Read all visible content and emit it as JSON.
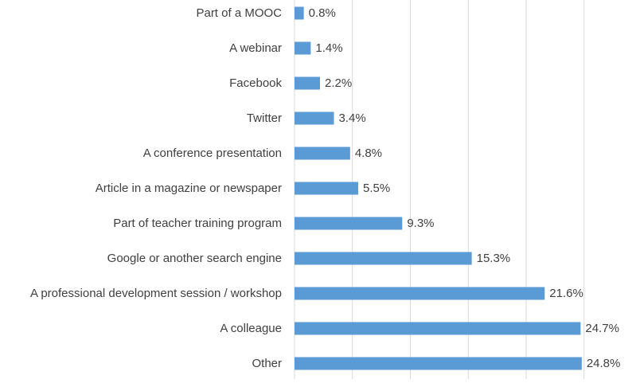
{
  "chart_data": {
    "type": "bar",
    "orientation": "horizontal",
    "categories": [
      "Part of a MOOC",
      "A webinar",
      "Facebook",
      "Twitter",
      "A conference presentation",
      "Article in a magazine or newspaper",
      "Part of teacher training program",
      "Google or another search engine",
      "A professional development session / workshop",
      "A colleague",
      "Other"
    ],
    "values": [
      0.8,
      1.4,
      2.2,
      3.4,
      4.8,
      5.5,
      9.3,
      15.3,
      21.6,
      24.7,
      24.8
    ],
    "value_labels": [
      "0.8%",
      "1.4%",
      "2.2%",
      "3.4%",
      "4.8%",
      "5.5%",
      "9.3%",
      "15.3%",
      "21.6%",
      "24.7%",
      "24.8%"
    ],
    "xlim": [
      0,
      30
    ],
    "grid": true,
    "bar_color": "#5B9BD5",
    "title": "",
    "xlabel": "",
    "ylabel": ""
  }
}
